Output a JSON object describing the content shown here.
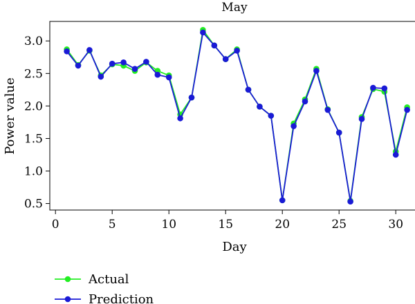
{
  "chart_data": {
    "type": "line",
    "title": "May",
    "xlabel": "Day",
    "ylabel": "Power value",
    "xlim": [
      -0.5,
      32
    ],
    "ylim": [
      0.4,
      3.3
    ],
    "xticks": [
      0,
      5,
      10,
      15,
      20,
      25,
      30
    ],
    "yticks": [
      0.5,
      1.0,
      1.5,
      2.0,
      2.5,
      3.0
    ],
    "xtick_labels": [
      "0",
      "5",
      "10",
      "15",
      "20",
      "25",
      "30"
    ],
    "ytick_labels": [
      "0.5",
      "1.0",
      "1.5",
      "2.0",
      "2.5",
      "3.0"
    ],
    "grid": false,
    "legend_position": "bottom-left",
    "x": [
      1,
      2,
      3,
      4,
      5,
      6,
      7,
      8,
      9,
      10,
      11,
      12,
      13,
      14,
      15,
      16,
      17,
      18,
      19,
      20,
      21,
      22,
      23,
      24,
      25,
      26,
      27,
      28,
      29,
      30,
      31
    ],
    "series": [
      {
        "name": "Actual",
        "color": "#22ee22",
        "values": [
          2.87,
          2.63,
          2.85,
          2.47,
          2.64,
          2.62,
          2.54,
          2.67,
          2.54,
          2.47,
          1.87,
          2.13,
          3.17,
          2.93,
          2.72,
          2.87,
          2.25,
          1.99,
          1.85,
          0.55,
          1.73,
          2.1,
          2.57,
          1.95,
          1.59,
          0.54,
          1.83,
          2.26,
          2.22,
          1.3,
          1.98
        ]
      },
      {
        "name": "Prediction",
        "color": "#1a1ad6",
        "values": [
          2.84,
          2.62,
          2.86,
          2.45,
          2.65,
          2.67,
          2.57,
          2.68,
          2.48,
          2.44,
          1.81,
          2.13,
          3.13,
          2.93,
          2.72,
          2.85,
          2.25,
          1.99,
          1.85,
          0.55,
          1.69,
          2.07,
          2.54,
          1.94,
          1.59,
          0.53,
          1.8,
          2.28,
          2.27,
          1.25,
          1.94
        ]
      }
    ]
  }
}
